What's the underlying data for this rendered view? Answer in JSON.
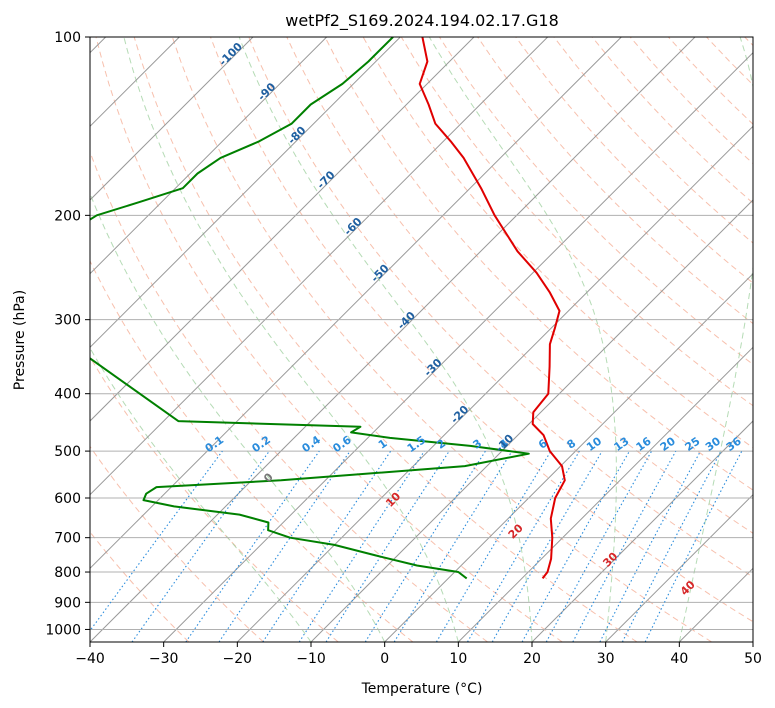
{
  "chart_data": {
    "type": "line",
    "subtype": "skew-t log-p diagram",
    "title": "wetPf2_S169.2024.194.02.17.G18",
    "xlabel": "Temperature (°C)",
    "ylabel": "Pressure (hPa)",
    "xlim": [
      -40,
      50
    ],
    "ylim": [
      1050,
      100
    ],
    "y_scale": "log",
    "grid": true,
    "x_ticks": [
      -40,
      -30,
      -20,
      -10,
      0,
      10,
      20,
      30,
      40,
      50
    ],
    "y_ticks": [
      1000,
      900,
      800,
      700,
      600,
      500,
      400,
      300,
      200,
      100
    ],
    "x_tick_labels": [
      "−40",
      "−30",
      "−20",
      "−10",
      "0",
      "10",
      "20",
      "30",
      "40",
      "50"
    ],
    "y_tick_labels": [
      "1000",
      "900",
      "800",
      "700",
      "600",
      "500",
      "400",
      "300",
      "200",
      "100"
    ],
    "colors": {
      "temperature": "#e00000",
      "dewpoint": "#008000",
      "isotherm_labels": "#1f5fa0",
      "mixing_ratio": "#2a8cdc",
      "dry_adiabat": "#f4a58a",
      "moist_adiabat": "#9ccf9c",
      "isotherm": "#999999",
      "moist_adiabat_labels": "#d62728"
    },
    "series": [
      {
        "key": "temperature",
        "points": [
          {
            "p": 820,
            "t": 12.8
          },
          {
            "p": 800,
            "t": 12.6
          },
          {
            "p": 760,
            "t": 11.3
          },
          {
            "p": 700,
            "t": 8.6
          },
          {
            "p": 650,
            "t": 5.8
          },
          {
            "p": 600,
            "t": 3.6
          },
          {
            "p": 560,
            "t": 2.5
          },
          {
            "p": 530,
            "t": 0.2
          },
          {
            "p": 500,
            "t": -3.5
          },
          {
            "p": 470,
            "t": -6.5
          },
          {
            "p": 450,
            "t": -9.5
          },
          {
            "p": 430,
            "t": -11.0
          },
          {
            "p": 400,
            "t": -11.5
          },
          {
            "p": 360,
            "t": -15.0
          },
          {
            "p": 330,
            "t": -18.0
          },
          {
            "p": 310,
            "t": -19.5
          },
          {
            "p": 290,
            "t": -21.2
          },
          {
            "p": 270,
            "t": -25.0
          },
          {
            "p": 250,
            "t": -29.5
          },
          {
            "p": 230,
            "t": -35.0
          },
          {
            "p": 200,
            "t": -43.0
          },
          {
            "p": 180,
            "t": -48.5
          },
          {
            "p": 160,
            "t": -55.0
          },
          {
            "p": 150,
            "t": -59.0
          },
          {
            "p": 140,
            "t": -63.5
          },
          {
            "p": 130,
            "t": -67.0
          },
          {
            "p": 120,
            "t": -71.0
          },
          {
            "p": 110,
            "t": -73.0
          },
          {
            "p": 100,
            "t": -77.0
          }
        ]
      },
      {
        "key": "dewpoint",
        "points": [
          {
            "p": 820,
            "t": 2.5
          },
          {
            "p": 800,
            "t": 0.5
          },
          {
            "p": 780,
            "t": -6.0
          },
          {
            "p": 750,
            "t": -13.0
          },
          {
            "p": 720,
            "t": -20.0
          },
          {
            "p": 700,
            "t": -27.0
          },
          {
            "p": 680,
            "t": -31.0
          },
          {
            "p": 660,
            "t": -32.0
          },
          {
            "p": 640,
            "t": -37.0
          },
          {
            "p": 620,
            "t": -47.0
          },
          {
            "p": 605,
            "t": -52.0
          },
          {
            "p": 590,
            "t": -52.5
          },
          {
            "p": 575,
            "t": -52.0
          },
          {
            "p": 560,
            "t": -36.0
          },
          {
            "p": 530,
            "t": -13.0
          },
          {
            "p": 505,
            "t": -6.0
          },
          {
            "p": 490,
            "t": -15.0
          },
          {
            "p": 475,
            "t": -27.0
          },
          {
            "p": 465,
            "t": -33.0
          },
          {
            "p": 455,
            "t": -32.5
          },
          {
            "p": 445,
            "t": -58.0
          },
          {
            "p": 270,
            "t": -100.0
          },
          {
            "p": 230,
            "t": -100.0
          },
          {
            "p": 200,
            "t": -97.0
          },
          {
            "p": 190,
            "t": -93.0
          },
          {
            "p": 180,
            "t": -89.0
          },
          {
            "p": 170,
            "t": -89.0
          },
          {
            "p": 160,
            "t": -88.0
          },
          {
            "p": 150,
            "t": -85.0
          },
          {
            "p": 140,
            "t": -83.0
          },
          {
            "p": 130,
            "t": -83.0
          },
          {
            "p": 120,
            "t": -81.5
          },
          {
            "p": 110,
            "t": -81.0
          },
          {
            "p": 100,
            "t": -81.0
          }
        ]
      }
    ],
    "isotherms": [
      -100,
      -90,
      -80,
      -70,
      -60,
      -50,
      -40,
      -30,
      -20,
      -10,
      0,
      10,
      20,
      30,
      40,
      50
    ],
    "isotherm_labels": [
      "-100",
      "-90",
      "-80",
      "-70",
      "-60",
      "-50",
      "-40",
      "-30",
      "-20",
      "-10"
    ],
    "dry_adiabats_theta_c": [
      -30,
      -20,
      -10,
      0,
      10,
      20,
      30,
      40,
      50,
      60,
      70,
      80,
      90,
      100,
      110,
      120,
      130,
      140,
      150,
      160,
      170,
      180,
      190,
      200
    ],
    "moist_adiabats_c": [
      -10,
      0,
      10,
      20,
      30,
      40,
      50
    ],
    "mixing_ratios_gkg": [
      0.1,
      0.2,
      0.4,
      0.6,
      1,
      1.5,
      2,
      3,
      4,
      6,
      8,
      10,
      13,
      16,
      20,
      25,
      30,
      36
    ],
    "mixing_ratio_labels": [
      "0.1",
      "0.2",
      "0.4",
      "0.6",
      "1",
      "1.5",
      "2",
      "3",
      "4",
      "6",
      "8",
      "10",
      "13",
      "16",
      "20",
      "25",
      "30",
      "36"
    ],
    "moist_adiabat_labels": [
      "0",
      "10",
      "20",
      "30",
      "40"
    ]
  }
}
